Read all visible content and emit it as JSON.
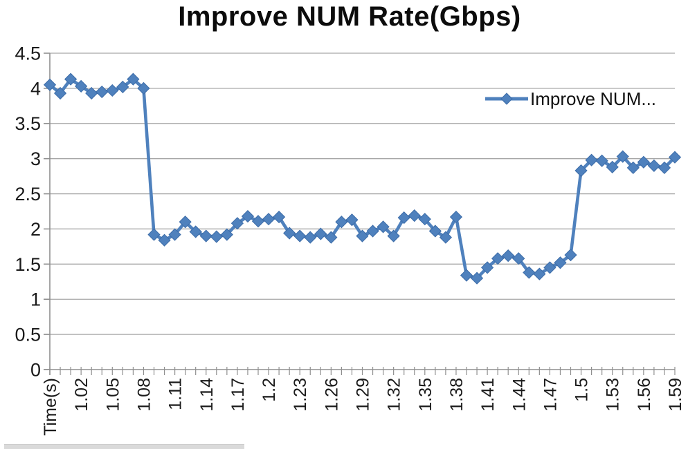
{
  "title": "Improve NUM Rate(Gbps)",
  "legend": {
    "label": "Improve NUM..."
  },
  "chart_data": {
    "type": "line",
    "title": "Improve NUM Rate(Gbps)",
    "xlabel": "",
    "ylabel": "",
    "ylim": [
      0,
      4.5
    ],
    "grid": "horizontal",
    "legend_position": "inside-top-right",
    "marker": "diamond",
    "n_points": 61,
    "x_label_every": 3,
    "x_tick_labels": [
      "Time(s)",
      "1.02",
      "1.05",
      "1.08",
      "1.11",
      "1.14",
      "1.17",
      "1.2",
      "1.23",
      "1.26",
      "1.29",
      "1.32",
      "1.35",
      "1.38",
      "1.41",
      "1.44",
      "1.47",
      "1.5",
      "1.53",
      "1.56",
      "1.59"
    ],
    "y_ticks": [
      0,
      0.5,
      1,
      1.5,
      2,
      2.5,
      3,
      3.5,
      4,
      4.5
    ],
    "y_tick_labels": [
      "0",
      "0.5",
      "1",
      "1.5",
      "2",
      "2.5",
      "3",
      "3.5",
      "4",
      "4.5"
    ],
    "series": [
      {
        "name": "Improve NUM Rate(Gbps)",
        "legend_label": "Improve NUM...",
        "values": [
          4.05,
          3.93,
          4.13,
          4.03,
          3.93,
          3.95,
          3.97,
          4.02,
          4.13,
          4.0,
          1.92,
          1.84,
          1.92,
          2.1,
          1.96,
          1.9,
          1.89,
          1.92,
          2.08,
          2.18,
          2.11,
          2.14,
          2.17,
          1.94,
          1.9,
          1.88,
          1.93,
          1.88,
          2.1,
          2.13,
          1.9,
          1.97,
          2.03,
          1.9,
          2.16,
          2.19,
          2.14,
          1.97,
          1.88,
          2.17,
          1.34,
          1.3,
          1.45,
          1.58,
          1.62,
          1.58,
          1.38,
          1.36,
          1.45,
          1.52,
          1.63,
          2.83,
          2.98,
          2.97,
          2.88,
          3.03,
          2.87,
          2.95,
          2.9,
          2.87,
          3.02
        ]
      }
    ],
    "colors": {
      "series": "#4f81bd",
      "marker_stroke": "#3c6ca8",
      "gridline": "#a6a6a6",
      "axis": "#8f8f8f",
      "text": "#1a1a1a"
    }
  }
}
